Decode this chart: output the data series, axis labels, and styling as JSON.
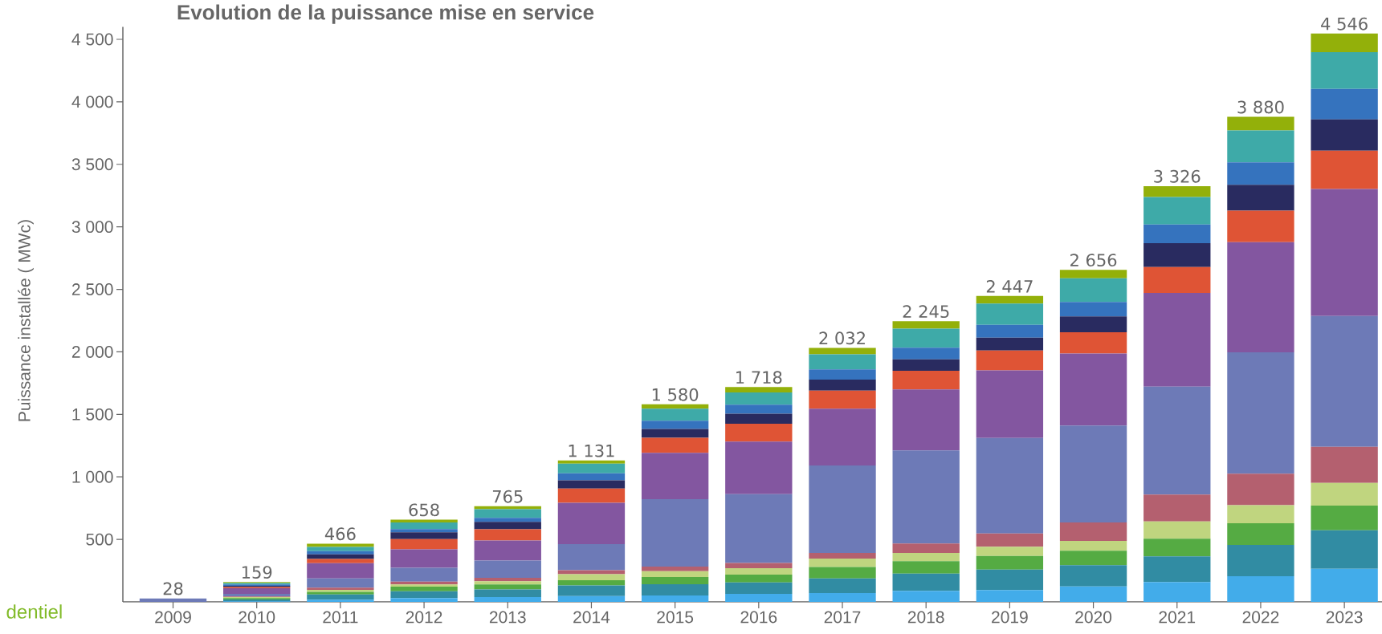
{
  "chart_data": {
    "type": "bar",
    "stacked": true,
    "title": "Evolution de la puissance mise en service",
    "ylabel": "Puissance installée ( MWc)",
    "categories": [
      "2009",
      "2010",
      "2011",
      "2012",
      "2013",
      "2014",
      "2015",
      "2016",
      "2017",
      "2018",
      "2019",
      "2020",
      "2021",
      "2022",
      "2023"
    ],
    "series": [
      {
        "color": "#42acea",
        "values": [
          null,
          5,
          18,
          30,
          39,
          47,
          51,
          64,
          71,
          88,
          95,
          124,
          159,
          205,
          265
        ]
      },
      {
        "color": "#318ca3",
        "values": [
          null,
          15,
          41,
          55,
          60,
          84,
          90,
          91,
          116,
          138,
          163,
          169,
          205,
          251,
          308
        ]
      },
      {
        "color": "#55ab43",
        "values": [
          null,
          10,
          22,
          37,
          40,
          43,
          58,
          64,
          92,
          99,
          110,
          117,
          142,
          173,
          198
        ]
      },
      {
        "color": "#c0d57f",
        "values": [
          null,
          8,
          15,
          18,
          26,
          47,
          47,
          50,
          67,
          67,
          74,
          78,
          137,
          145,
          180
        ]
      },
      {
        "color": "#b4606f",
        "values": [
          null,
          6,
          18,
          22,
          28,
          32,
          37,
          42,
          46,
          75,
          106,
          148,
          216,
          251,
          290
        ]
      },
      {
        "color": "#6d7ab7",
        "values": [
          28,
          20,
          74,
          111,
          137,
          210,
          538,
          551,
          700,
          745,
          763,
          774,
          863,
          972,
          1046
        ]
      },
      {
        "color": "#8356a0",
        "values": [
          null,
          45,
          122,
          148,
          161,
          330,
          371,
          421,
          453,
          488,
          541,
          577,
          749,
          880,
          1015
        ]
      },
      {
        "color": "#df5435",
        "values": [
          null,
          10,
          33,
          81,
          90,
          113,
          120,
          142,
          145,
          149,
          159,
          170,
          208,
          252,
          307
        ]
      },
      {
        "color": "#292b60",
        "values": [
          null,
          10,
          37,
          55,
          60,
          67,
          72,
          81,
          88,
          92,
          103,
          127,
          191,
          208,
          251
        ]
      },
      {
        "color": "#3573be",
        "values": [
          null,
          10,
          26,
          26,
          32,
          56,
          65,
          71,
          82,
          92,
          102,
          116,
          149,
          180,
          244
        ]
      },
      {
        "color": "#3eaaa8",
        "values": [
          null,
          12,
          33,
          52,
          69,
          77,
          96,
          99,
          120,
          152,
          170,
          188,
          219,
          255,
          294
        ]
      },
      {
        "color": "#93b00a",
        "values": [
          null,
          8,
          27,
          23,
          23,
          25,
          35,
          42,
          52,
          60,
          61,
          68,
          88,
          108,
          148
        ]
      }
    ],
    "totals": [
      "28",
      "159",
      "466",
      "658",
      "765",
      "1 131",
      "1 580",
      "1 718",
      "2 032",
      "2 245",
      "2 447",
      "2 656",
      "3 326",
      "3 880",
      "4 546"
    ],
    "ylim": [
      0,
      4600
    ],
    "yticks": [
      500,
      {
        "value": 1000,
        "label": "1 000"
      },
      {
        "value": 1500,
        "label": "1 500"
      },
      {
        "value": 2000,
        "label": "2 000"
      },
      {
        "value": 2500,
        "label": "2 500"
      },
      {
        "value": 3000,
        "label": "3 000"
      },
      {
        "value": 3500,
        "label": "3 500"
      },
      {
        "value": 4000,
        "label": "4 000"
      },
      {
        "value": 4500,
        "label": "4 500"
      }
    ],
    "annotations": [
      "dentiel"
    ]
  }
}
